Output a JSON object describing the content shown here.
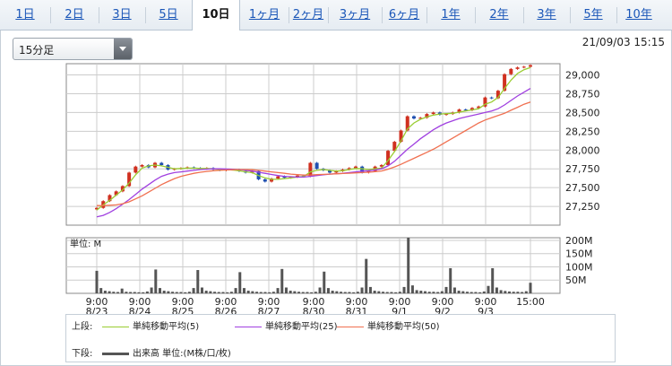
{
  "tabs": [
    {
      "label": "1日",
      "active": false
    },
    {
      "label": "2日",
      "active": false
    },
    {
      "label": "3日",
      "active": false
    },
    {
      "label": "5日",
      "active": false
    },
    {
      "label": "10日",
      "active": true
    },
    {
      "label": "1ヶ月",
      "active": false
    },
    {
      "label": "2ヶ月",
      "active": false
    },
    {
      "label": "3ヶ月",
      "active": false
    },
    {
      "label": "6ヶ月",
      "active": false
    },
    {
      "label": "1年",
      "active": false
    },
    {
      "label": "2年",
      "active": false
    },
    {
      "label": "3年",
      "active": false
    },
    {
      "label": "5年",
      "active": false
    },
    {
      "label": "10年",
      "active": false
    }
  ],
  "interval_select": {
    "value": "15分足"
  },
  "timestamp": "21/09/03 15:15",
  "legend": {
    "upper_label": "上段:",
    "lower_label": "下段:",
    "ma5": "単純移動平均(5)",
    "ma25": "単純移動平均(25)",
    "ma50": "単純移動平均(50)",
    "volume": "出来高 単位:(M株/口/枚)"
  },
  "colors": {
    "ma5": "#9acd32",
    "ma25": "#a040e0",
    "ma50": "#f07050",
    "up": "#d03020",
    "down": "#2050b0",
    "volume": "#555555",
    "grid": "#cccccc"
  },
  "chart_data": [
    {
      "type": "line",
      "title": "",
      "ylim": [
        27000,
        29150
      ],
      "yticks": [
        27250,
        27500,
        27750,
        28000,
        28250,
        28500,
        28750,
        29000
      ],
      "ytick_labels": [
        "27,250",
        "27,500",
        "27,750",
        "28,000",
        "28,250",
        "28,500",
        "28,750",
        "29,000"
      ],
      "x_tick_labels": [
        {
          "time": "9:00",
          "date": "8/23"
        },
        {
          "time": "9:00",
          "date": "8/24"
        },
        {
          "time": "9:00",
          "date": "8/25"
        },
        {
          "time": "9:00",
          "date": "8/26"
        },
        {
          "time": "9:00",
          "date": "8/27"
        },
        {
          "time": "9:00",
          "date": "8/30"
        },
        {
          "time": "9:00",
          "date": "8/31"
        },
        {
          "time": "9:00",
          "date": "9/1"
        },
        {
          "time": "9:00",
          "date": "9/2"
        },
        {
          "time": "9:00",
          "date": "9/3"
        },
        {
          "time": "15:00",
          "date": ""
        }
      ],
      "price_close_approx": [
        27230,
        27320,
        27400,
        27450,
        27520,
        27700,
        27780,
        27800,
        27770,
        27830,
        27800,
        27740,
        27750,
        27760,
        27770,
        27760,
        27750,
        27760,
        27740,
        27730,
        27740,
        27740,
        27720,
        27700,
        27720,
        27610,
        27580,
        27620,
        27650,
        27630,
        27640,
        27660,
        27650,
        27830,
        27750,
        27730,
        27700,
        27720,
        27740,
        27760,
        27780,
        27700,
        27720,
        27780,
        27800,
        27990,
        28110,
        28260,
        28450,
        28420,
        28430,
        28480,
        28500,
        28470,
        28480,
        28500,
        28540,
        28530,
        28560,
        28580,
        28700,
        28690,
        28790,
        29010,
        29080,
        29100,
        29110,
        29130
      ],
      "series": [
        {
          "name": "単純移動平均(5)",
          "values": [
            27200,
            27270,
            27330,
            27400,
            27470,
            27560,
            27670,
            27760,
            27790,
            27800,
            27790,
            27770,
            27750,
            27755,
            27760,
            27760,
            27755,
            27755,
            27750,
            27740,
            27738,
            27735,
            27725,
            27710,
            27700,
            27660,
            27630,
            27610,
            27610,
            27620,
            27630,
            27640,
            27650,
            27710,
            27730,
            27740,
            27730,
            27720,
            27725,
            27740,
            27755,
            27750,
            27740,
            27750,
            27760,
            27860,
            27980,
            28120,
            28280,
            28360,
            28410,
            28440,
            28465,
            28480,
            28485,
            28490,
            28505,
            28520,
            28535,
            28550,
            28610,
            28640,
            28700,
            28820,
            28930,
            29020,
            29070,
            29100
          ]
        },
        {
          "name": "単純移動平均(25)",
          "values": [
            27110,
            27130,
            27170,
            27220,
            27280,
            27340,
            27410,
            27480,
            27540,
            27600,
            27650,
            27680,
            27700,
            27710,
            27720,
            27730,
            27740,
            27745,
            27750,
            27750,
            27748,
            27745,
            27740,
            27730,
            27720,
            27705,
            27690,
            27675,
            27660,
            27650,
            27645,
            27640,
            27640,
            27650,
            27660,
            27670,
            27680,
            27685,
            27690,
            27700,
            27710,
            27720,
            27725,
            27735,
            27750,
            27790,
            27850,
            27930,
            28010,
            28080,
            28150,
            28210,
            28270,
            28320,
            28360,
            28390,
            28420,
            28440,
            28460,
            28480,
            28500,
            28520,
            28550,
            28600,
            28660,
            28720,
            28770,
            28820
          ]
        },
        {
          "name": "単純移動平均(50)",
          "values": [
            27260,
            27260,
            27265,
            27270,
            27285,
            27310,
            27350,
            27390,
            27440,
            27490,
            27540,
            27580,
            27620,
            27650,
            27670,
            27690,
            27705,
            27715,
            27725,
            27730,
            27735,
            27738,
            27740,
            27740,
            27738,
            27730,
            27720,
            27710,
            27700,
            27690,
            27680,
            27672,
            27666,
            27668,
            27672,
            27676,
            27680,
            27684,
            27688,
            27692,
            27696,
            27700,
            27705,
            27712,
            27722,
            27745,
            27775,
            27810,
            27850,
            27890,
            27930,
            27970,
            28010,
            28060,
            28110,
            28160,
            28210,
            28260,
            28310,
            28360,
            28400,
            28430,
            28460,
            28490,
            28530,
            28570,
            28610,
            28640
          ]
        }
      ]
    },
    {
      "type": "bar",
      "title": "",
      "unit_label": "単位: M",
      "ylim": [
        0,
        210
      ],
      "yticks": [
        50,
        100,
        150,
        200
      ],
      "ytick_labels": [
        "50M",
        "100M",
        "150M",
        "200M"
      ],
      "values": [
        85,
        20,
        10,
        8,
        6,
        5,
        18,
        6,
        5,
        5,
        4,
        4,
        7,
        22,
        90,
        20,
        10,
        8,
        6,
        5,
        5,
        4,
        6,
        20,
        88,
        22,
        10,
        8,
        6,
        5,
        5,
        4,
        6,
        20,
        80,
        20,
        10,
        8,
        6,
        5,
        5,
        4,
        6,
        20,
        92,
        22,
        10,
        8,
        6,
        5,
        5,
        4,
        6,
        22,
        82,
        20,
        10,
        8,
        6,
        5,
        5,
        4,
        6,
        22,
        130,
        24,
        10,
        8,
        6,
        5,
        5,
        4,
        6,
        24,
        210,
        30,
        12,
        10,
        8,
        6,
        6,
        5,
        8,
        24,
        95,
        22,
        10,
        8,
        6,
        5,
        5,
        4,
        7,
        28,
        95,
        22,
        12,
        9,
        7,
        6,
        6,
        5,
        8,
        40
      ]
    }
  ]
}
